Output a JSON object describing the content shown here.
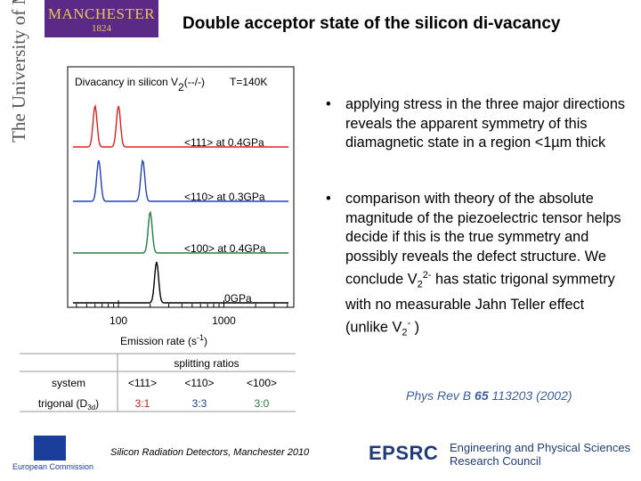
{
  "logo": {
    "name": "MANCHESTER",
    "year": "1824",
    "university": "The University of Manchester"
  },
  "title": "Double acceptor state of the silicon di-vacancy",
  "figure": {
    "type": "line",
    "title": [
      "Divacancy in silicon V",
      "2",
      "(--/-)"
    ],
    "temperature": "T=140K",
    "x_label": [
      "Emission rate (s",
      "-1",
      ")"
    ],
    "xscale": "log",
    "xlim": [
      33,
      4600
    ],
    "xticks": [
      100,
      1000
    ],
    "series": [
      {
        "name": "<111> at 0.4GPa",
        "color": "#e02020",
        "peaks": [
          60,
          100
        ]
      },
      {
        "name": "<110> at 0.3GPa",
        "color": "#2040c0",
        "peaks": [
          65,
          170
        ]
      },
      {
        "name": "<100> at 0.4GPa",
        "color": "#208040",
        "peaks": [
          200
        ]
      },
      {
        "name": "0GPa",
        "color": "#000000",
        "peaks": [
          230
        ]
      }
    ]
  },
  "bullets": [
    [
      "applying stress in the three major directions reveals the apparent symmetry of this diamagnetic state in a region <1µm thick"
    ],
    [
      "comparison with theory of the absolute magnitude of the piezoelectric tensor helps decide if this is the true symmetry and possibly reveals the defect structure. We conclude V",
      "2",
      "2-",
      " has static trigonal symmetry with no measurable Jahn Teller effect (unlike V",
      "2",
      "-",
      " )"
    ]
  ],
  "table": {
    "caption": "splitting ratios",
    "header": [
      "system",
      "<111>",
      "<110>",
      "<100>"
    ],
    "rows": [
      [
        [
          "trigonal (D",
          "3d",
          ")"
        ],
        "3:1",
        "3:3",
        "3:0"
      ]
    ]
  },
  "reference": [
    "Phys Rev B ",
    "65",
    " 113203 (2002)"
  ],
  "footer": "Silicon Radiation Detectors, Manchester 2010",
  "funders": {
    "eu": "European Commission",
    "epsrc": "EPSRC",
    "epsrc_name": [
      "Engineering and Physical Sciences",
      "Research Council"
    ]
  }
}
